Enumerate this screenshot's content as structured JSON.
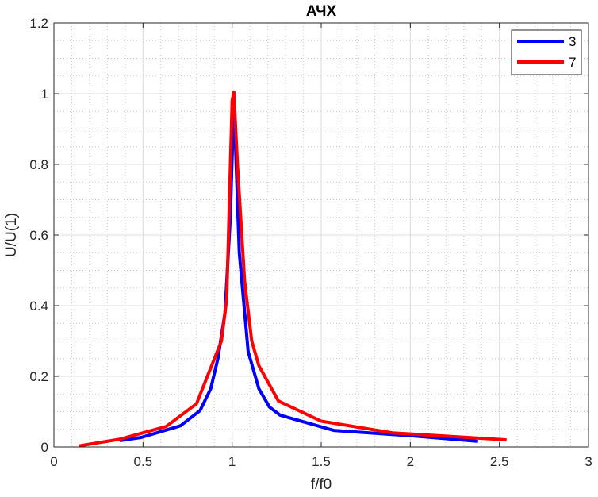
{
  "chart_data": {
    "type": "line",
    "title": "АЧХ",
    "xlabel": "f/f0",
    "ylabel": "U/U(1)",
    "xlim": [
      0,
      3
    ],
    "ylim": [
      0,
      1.2
    ],
    "xticks": [
      0,
      0.5,
      1,
      1.5,
      2,
      2.5,
      3
    ],
    "xtick_labels": [
      "0",
      "0.5",
      "1",
      "1.5",
      "2",
      "2.5",
      "3"
    ],
    "yticks": [
      0,
      0.2,
      0.4,
      0.6,
      0.8,
      1,
      1.2
    ],
    "ytick_labels": [
      "0",
      "0.2",
      "0.4",
      "0.6",
      "0.8",
      "1",
      "1.2"
    ],
    "grid": true,
    "minor_grid": true,
    "legend_position": "top-right",
    "series": [
      {
        "name": "3",
        "color": "#0000ff",
        "x": [
          0.37,
          0.49,
          0.71,
          0.82,
          0.88,
          0.92,
          0.96,
          0.99,
          1.01,
          1.04,
          1.09,
          1.15,
          1.21,
          1.27,
          1.57,
          2.0,
          2.38
        ],
        "y": [
          0.018,
          0.027,
          0.06,
          0.103,
          0.165,
          0.25,
          0.38,
          0.65,
          0.985,
          0.55,
          0.27,
          0.165,
          0.113,
          0.09,
          0.047,
          0.032,
          0.016
        ]
      },
      {
        "name": "7",
        "color": "#ff0000",
        "x": [
          0.14,
          0.37,
          0.63,
          0.8,
          0.94,
          0.97,
          1.0,
          1.01,
          1.03,
          1.07,
          1.11,
          1.15,
          1.26,
          1.5,
          1.9,
          2.54
        ],
        "y": [
          0.003,
          0.022,
          0.058,
          0.122,
          0.3,
          0.42,
          0.98,
          1.005,
          0.8,
          0.47,
          0.3,
          0.23,
          0.13,
          0.073,
          0.04,
          0.02
        ]
      }
    ]
  }
}
